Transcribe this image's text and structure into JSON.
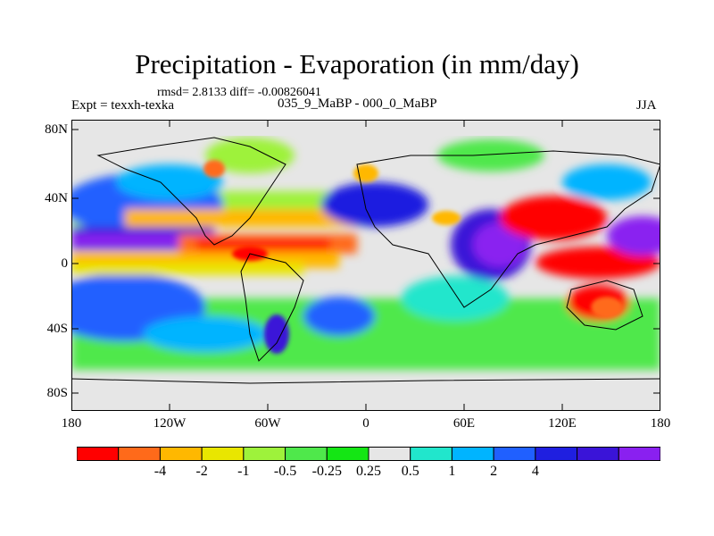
{
  "title": "Precipitation - Evaporation (in mm/day)",
  "stats": "rmsd= 2.8133 diff= -0.00826041",
  "experiment": "Expt = texxh-texka",
  "period": "035_9_MaBP - 000_0_MaBP",
  "season": "JJA",
  "y_ticks": [
    "80N",
    "40N",
    "0",
    "40S",
    "80S"
  ],
  "x_ticks": [
    "180",
    "120W",
    "60W",
    "0",
    "60E",
    "120E",
    "180"
  ],
  "colorbar": {
    "colors": [
      "#ff0000",
      "#ff6a1a",
      "#ffb800",
      "#e9e600",
      "#9ef23b",
      "#4fe84b",
      "#14e614",
      "#e6e6e6",
      "#21e6cc",
      "#00b4ff",
      "#2060ff",
      "#1f1fe0",
      "#3a14d8",
      "#8a20f0"
    ],
    "labels": [
      "-4",
      "-2",
      "-1",
      "-0.5",
      "-0.25",
      "0.25",
      "0.5",
      "1",
      "2",
      "4"
    ]
  }
}
